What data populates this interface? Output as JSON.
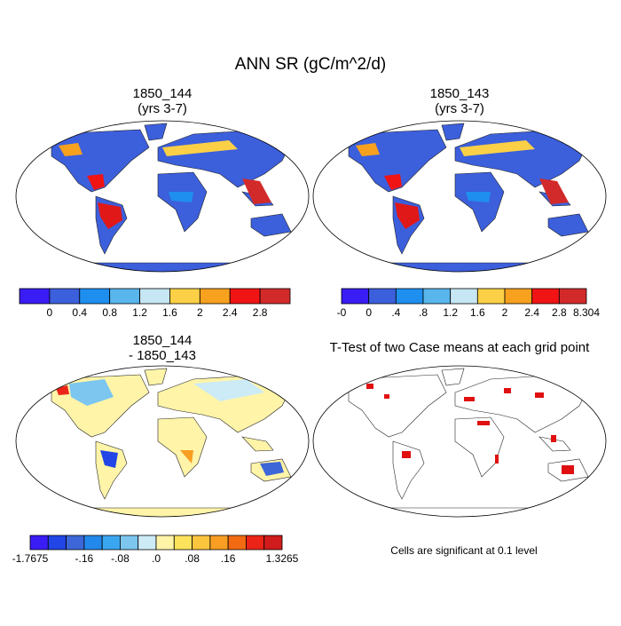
{
  "title": "ANN SR (gC/m^2/d)",
  "panels": [
    {
      "title": "1850_144",
      "subtitle": "(yrs 3-7)"
    },
    {
      "title": "1850_143",
      "subtitle": "(yrs 3-7)"
    },
    {
      "title": "1850_144",
      "subtitle": "- 1850_143"
    },
    {
      "title": "T-Test of two Case means at each grid point"
    }
  ],
  "colorbars": [
    {
      "colors": [
        "#3a1cf5",
        "#3c5fdc",
        "#1f8fef",
        "#58b6ec",
        "#c6e6f3",
        "#fbd046",
        "#f8a11f",
        "#f01414",
        "#d22a2a"
      ],
      "labels": [
        null,
        "0",
        "0.4",
        "0.8",
        "1.2",
        "1.6",
        "2",
        "2.4",
        "2.8",
        null
      ]
    },
    {
      "colors": [
        "#3a1cf5",
        "#3c5fdc",
        "#1f8fef",
        "#58b6ec",
        "#c6e6f3",
        "#fbd046",
        "#f8a11f",
        "#f01414",
        "#d22a2a"
      ],
      "labels": [
        "-0",
        "0",
        ".4",
        ".8",
        "1.2",
        "1.6",
        "2",
        "2.4",
        "2.8",
        "8.304"
      ]
    },
    {
      "colors": [
        "#3a1cf5",
        "#2145e6",
        "#3d67d8",
        "#2288ec",
        "#3aa6f0",
        "#7cc6f0",
        "#cdebf6",
        "#fff4a8",
        "#fde35c",
        "#fcc53e",
        "#f89e22",
        "#f26a12",
        "#ec2418",
        "#d01c1c"
      ],
      "labels": [
        "-1.7675",
        null,
        null,
        "-.16",
        null,
        "-.08",
        null,
        ".0",
        null,
        ".08",
        null,
        ".16",
        null,
        null,
        "1.3265"
      ]
    }
  ],
  "note": "Cells are significant at 0.1 level"
}
